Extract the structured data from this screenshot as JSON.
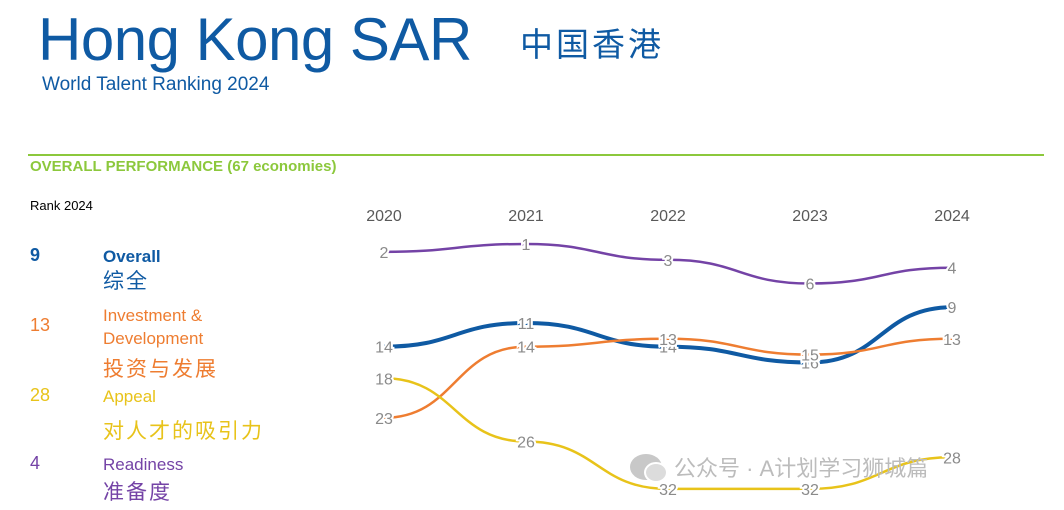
{
  "header": {
    "title": "Hong Kong SAR",
    "title_cn": "中国香港",
    "subtitle": "World Talent Ranking 2024"
  },
  "section": {
    "heading": "OVERALL PERFORMANCE  (67 economies)",
    "rank_label": "Rank 2024"
  },
  "factors": [
    {
      "rank": "9",
      "label": "Overall",
      "label_cn": "综全",
      "color": "#0f5aa3"
    },
    {
      "rank": "13",
      "label": "Investment & Development",
      "label_cn": "投资与发展",
      "color": "#ee7d31"
    },
    {
      "rank": "28",
      "label": "Appeal",
      "label_cn": "对人才的吸引力",
      "color": "#e8c31a"
    },
    {
      "rank": "4",
      "label": "Readiness",
      "label_cn": "准备度",
      "color": "#7443a6"
    }
  ],
  "watermark": "公众号 · A计划学习狮城篇",
  "chart_data": {
    "type": "line",
    "categories": [
      "2020",
      "2021",
      "2022",
      "2023",
      "2024"
    ],
    "series": [
      {
        "name": "Readiness",
        "values": [
          2,
          1,
          3,
          6,
          4
        ],
        "color": "#7443a6"
      },
      {
        "name": "Overall",
        "values": [
          14,
          11,
          14,
          16,
          9
        ],
        "color": "#0f5aa3"
      },
      {
        "name": "Investment & Development",
        "values": [
          23,
          14,
          13,
          15,
          13
        ],
        "color": "#ee7d31"
      },
      {
        "name": "Appeal",
        "values": [
          18,
          26,
          32,
          32,
          28
        ],
        "color": "#e8c31a"
      }
    ],
    "y_reversed": true,
    "grid": false
  }
}
